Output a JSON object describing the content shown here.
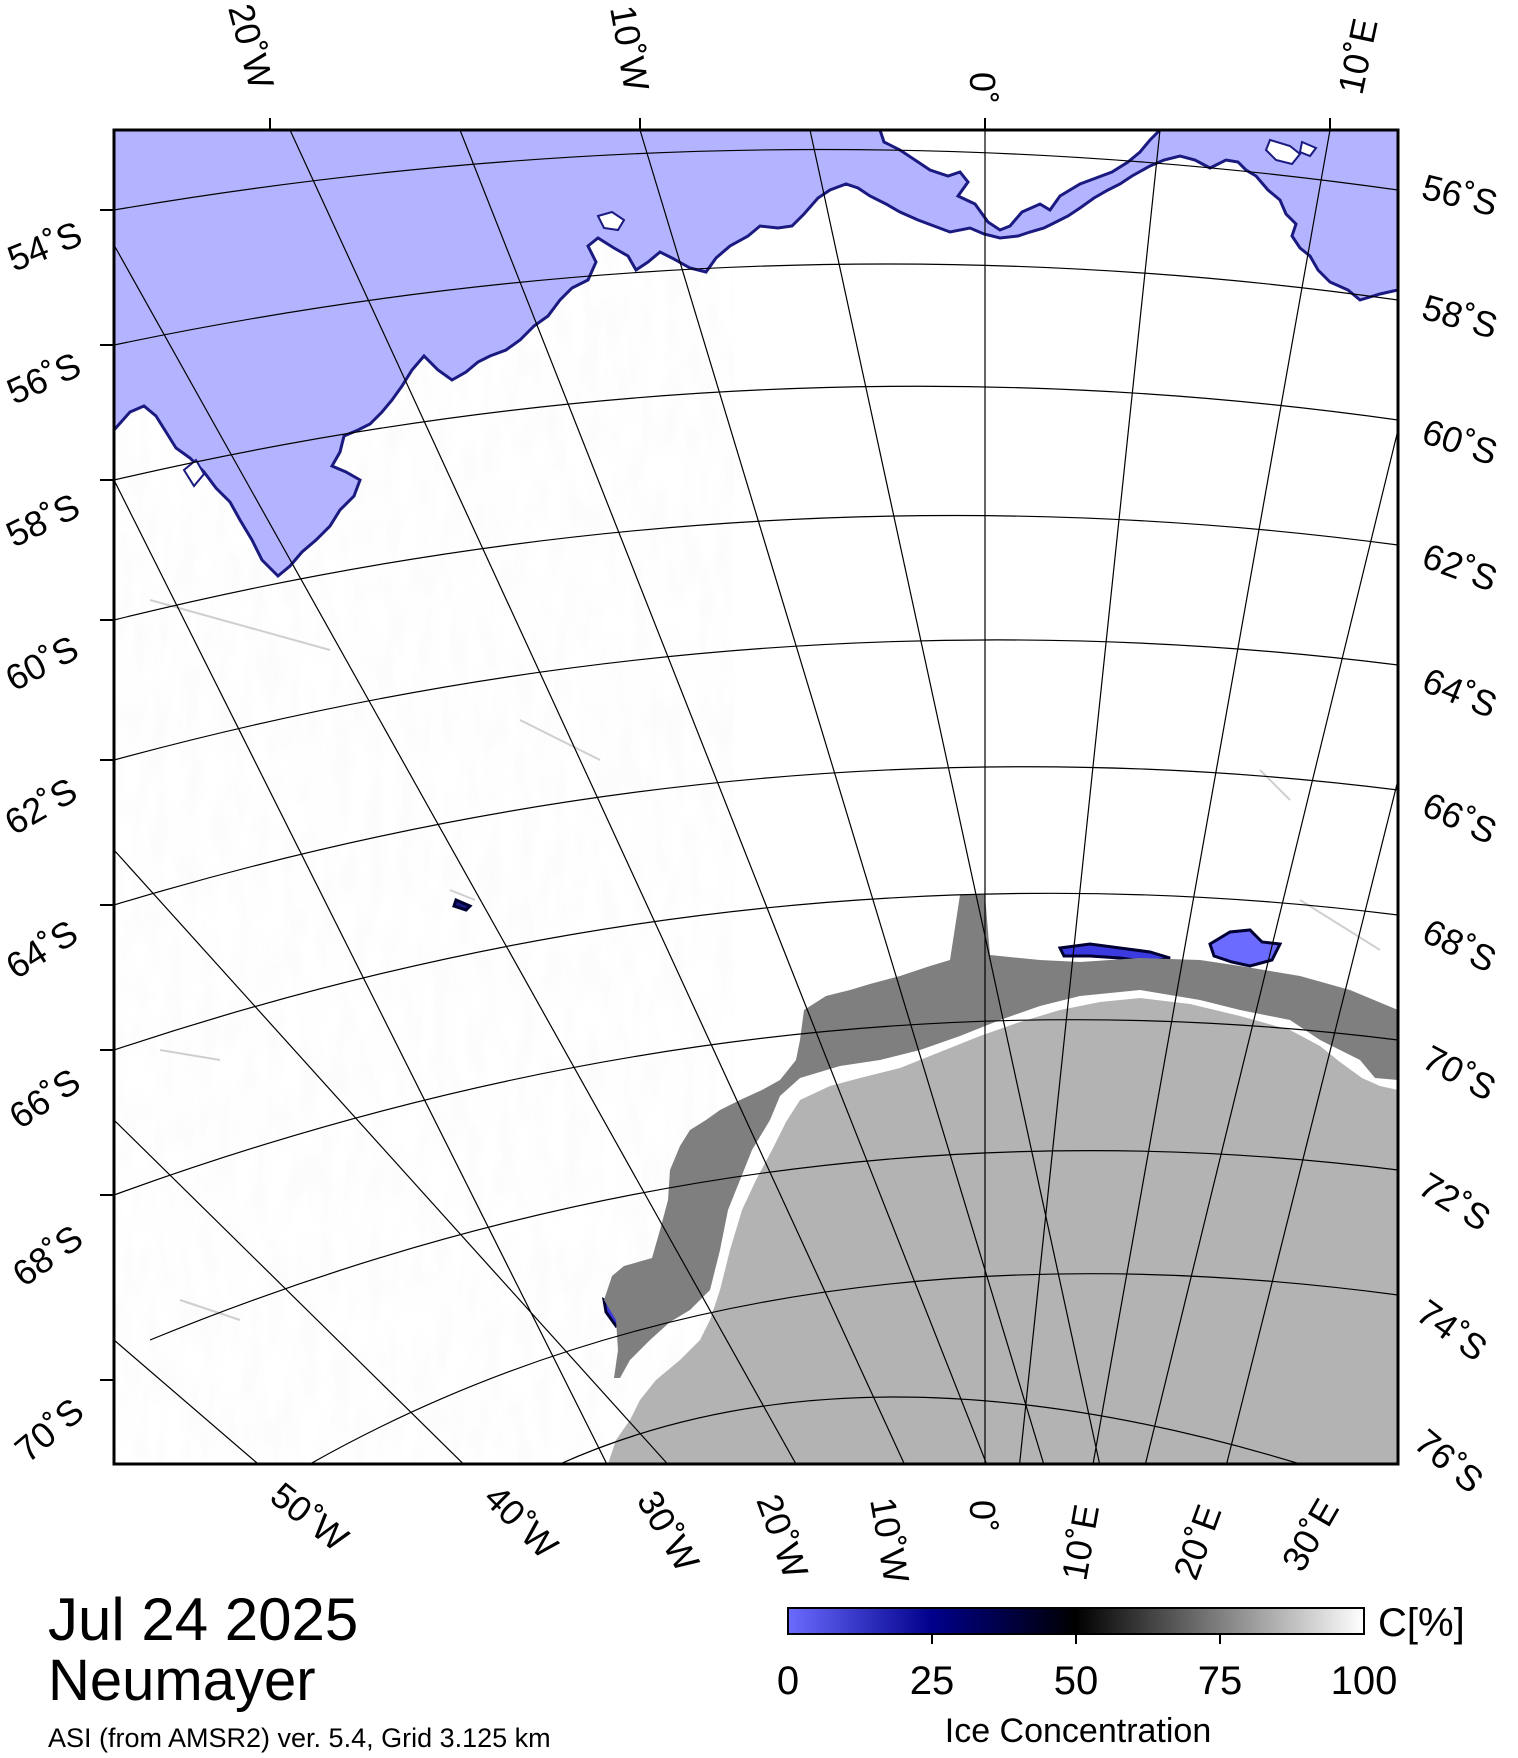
{
  "map": {
    "date": "Jul 24 2025",
    "station": "Neumayer",
    "source": "ASI (from AMSR2) ver. 5.4,  Grid 3.125 km",
    "colors": {
      "open_water": "#b3b3ff",
      "ice_edge": "#1a1a80",
      "high_ice": "#ffffff",
      "ice_shelf": "#7f7f7f",
      "land": "#b3b3b3"
    },
    "top_longitude_labels": [
      "20˚W",
      "10˚W",
      "0˚",
      "10˚E"
    ],
    "bottom_longitude_labels": [
      "50˚W",
      "40˚W",
      "30˚W",
      "20˚W",
      "10˚W",
      "0˚",
      "10˚E",
      "20˚E",
      "30˚E"
    ],
    "left_latitude_labels": [
      "54˚S",
      "56˚S",
      "58˚S",
      "60˚S",
      "62˚S",
      "64˚S",
      "66˚S",
      "68˚S",
      "70˚S"
    ],
    "right_latitude_labels": [
      "56˚S",
      "58˚S",
      "60˚S",
      "62˚S",
      "64˚S",
      "66˚S",
      "68˚S",
      "70˚S",
      "72˚S",
      "74˚S",
      "76˚S"
    ]
  },
  "colorbar": {
    "title": "Ice Concentration",
    "unit": "C[%]",
    "ticks": [
      "0",
      "25",
      "50",
      "75",
      "100"
    ],
    "stops": [
      "#6b6bff",
      "#00008b",
      "#000000",
      "#7f7f7f",
      "#ffffff"
    ]
  }
}
